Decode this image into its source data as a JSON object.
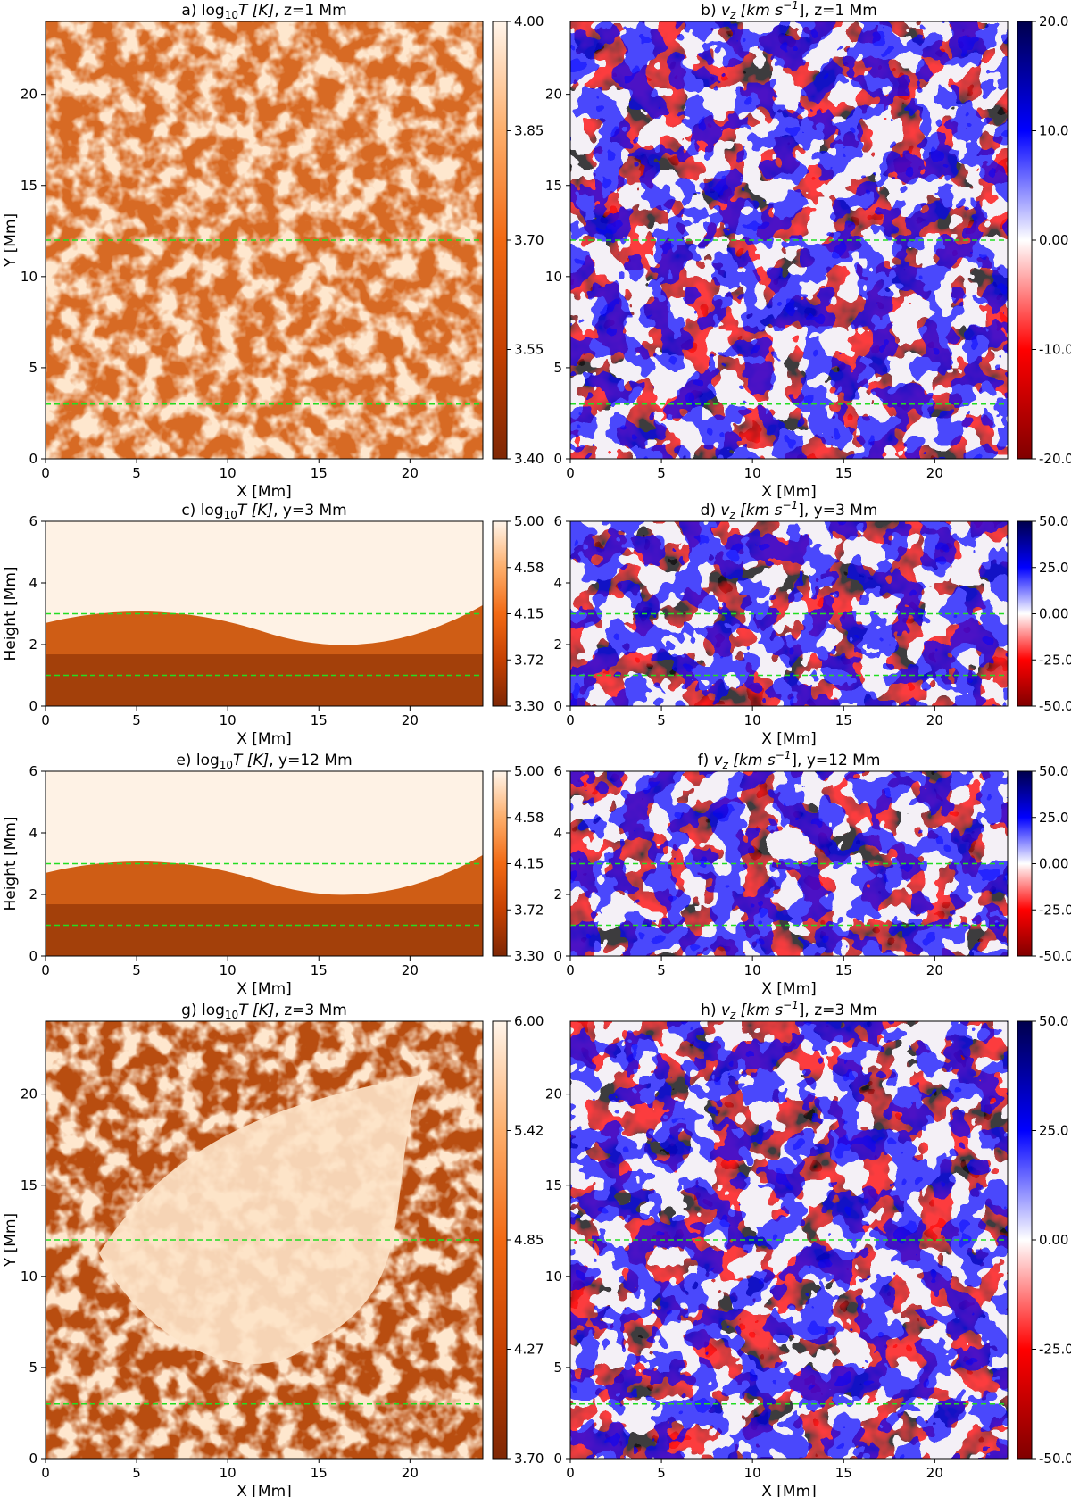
{
  "chart_data": [
    {
      "type": "heatmap",
      "panel": "a",
      "title_prefix": "a) ",
      "title_main": "log",
      "title_sub": "10",
      "title_var": "T [K]",
      "title_suffix": ", z=1 Mm",
      "xlabel": "X [Mm]",
      "ylabel": "Y [Mm]",
      "xlim": [
        0,
        24
      ],
      "ylim": [
        0,
        24
      ],
      "xticks": [
        "0",
        "5",
        "10",
        "15",
        "20"
      ],
      "yticks": [
        "0",
        "5",
        "10",
        "15",
        "20"
      ],
      "colormap": "oranges",
      "colorbar_range": [
        3.4,
        4.0
      ],
      "colorbar_ticks": [
        "3.40",
        "3.55",
        "3.70",
        "3.85",
        "4.00"
      ],
      "guide_lines_y": [
        3,
        12
      ],
      "guide_line_color": "#22dd22"
    },
    {
      "type": "heatmap",
      "panel": "b",
      "title_prefix": "b) ",
      "title_var": "v",
      "title_sub": "z",
      "title_units": " [km s",
      "title_sup": "−1",
      "title_suffix": "], z=1 Mm",
      "xlabel": "X [Mm]",
      "ylabel": "",
      "xlim": [
        0,
        24
      ],
      "ylim": [
        0,
        24
      ],
      "xticks": [
        "0",
        "5",
        "10",
        "15",
        "20"
      ],
      "yticks": [
        "0",
        "5",
        "10",
        "15",
        "20"
      ],
      "colormap": "seismic_r",
      "colorbar_range": [
        -20.0,
        20.0
      ],
      "colorbar_ticks": [
        "-20.0",
        "-10.0",
        "0.00",
        "10.0",
        "20.0"
      ],
      "guide_lines_y": [
        3,
        12
      ],
      "guide_line_color": "#22dd22"
    },
    {
      "type": "heatmap",
      "panel": "c",
      "title_prefix": "c) ",
      "title_main": "log",
      "title_sub": "10",
      "title_var": "T [K]",
      "title_suffix": ", y=3 Mm",
      "xlabel": "X [Mm]",
      "ylabel": "Height [Mm]",
      "xlim": [
        0,
        24
      ],
      "ylim": [
        0,
        6
      ],
      "xticks": [
        "0",
        "5",
        "10",
        "15",
        "20"
      ],
      "yticks": [
        "0",
        "2",
        "4",
        "6"
      ],
      "colormap": "oranges",
      "colorbar_range": [
        3.3,
        5.0
      ],
      "colorbar_ticks": [
        "3.30",
        "3.72",
        "4.15",
        "4.58",
        "5.00"
      ],
      "guide_lines_y": [
        1,
        3
      ],
      "guide_line_color": "#22dd22"
    },
    {
      "type": "heatmap",
      "panel": "d",
      "title_prefix": "d) ",
      "title_var": "v",
      "title_sub": "z",
      "title_units": " [km s",
      "title_sup": "−1",
      "title_suffix": "], y=3 Mm",
      "xlabel": "X [Mm]",
      "ylabel": "",
      "xlim": [
        0,
        24
      ],
      "ylim": [
        0,
        6
      ],
      "xticks": [
        "0",
        "5",
        "10",
        "15",
        "20"
      ],
      "yticks": [
        "0",
        "2",
        "4",
        "6"
      ],
      "colormap": "seismic_r",
      "colorbar_range": [
        -50.0,
        50.0
      ],
      "colorbar_ticks": [
        "-50.0",
        "-25.0",
        "0.00",
        "25.0",
        "50.0"
      ],
      "guide_lines_y": [
        1,
        3
      ],
      "guide_line_color": "#22dd22"
    },
    {
      "type": "heatmap",
      "panel": "e",
      "title_prefix": "e) ",
      "title_main": "log",
      "title_sub": "10",
      "title_var": "T [K]",
      "title_suffix": ", y=12 Mm",
      "xlabel": "X [Mm]",
      "ylabel": "Height [Mm]",
      "xlim": [
        0,
        24
      ],
      "ylim": [
        0,
        6
      ],
      "xticks": [
        "0",
        "5",
        "10",
        "15",
        "20"
      ],
      "yticks": [
        "0",
        "2",
        "4",
        "6"
      ],
      "colormap": "oranges",
      "colorbar_range": [
        3.3,
        5.0
      ],
      "colorbar_ticks": [
        "3.30",
        "3.72",
        "4.15",
        "4.58",
        "5.00"
      ],
      "guide_lines_y": [
        1,
        3
      ],
      "guide_line_color": "#22dd22"
    },
    {
      "type": "heatmap",
      "panel": "f",
      "title_prefix": "f) ",
      "title_var": "v",
      "title_sub": "z",
      "title_units": " [km s",
      "title_sup": "−1",
      "title_suffix": "], y=12 Mm",
      "xlabel": "X [Mm]",
      "ylabel": "",
      "xlim": [
        0,
        24
      ],
      "ylim": [
        0,
        6
      ],
      "xticks": [
        "0",
        "5",
        "10",
        "15",
        "20"
      ],
      "yticks": [
        "0",
        "2",
        "4",
        "6"
      ],
      "colormap": "seismic_r",
      "colorbar_range": [
        -50.0,
        50.0
      ],
      "colorbar_ticks": [
        "-50.0",
        "-25.0",
        "0.00",
        "25.0",
        "50.0"
      ],
      "guide_lines_y": [
        1,
        3
      ],
      "guide_line_color": "#22dd22"
    },
    {
      "type": "heatmap",
      "panel": "g",
      "title_prefix": "g) ",
      "title_main": "log",
      "title_sub": "10",
      "title_var": "T [K]",
      "title_suffix": ", z=3 Mm",
      "xlabel": "X [Mm]",
      "ylabel": "Y [Mm]",
      "xlim": [
        0,
        24
      ],
      "ylim": [
        0,
        24
      ],
      "xticks": [
        "0",
        "5",
        "10",
        "15",
        "20"
      ],
      "yticks": [
        "0",
        "5",
        "10",
        "15",
        "20"
      ],
      "colormap": "oranges",
      "colorbar_range": [
        3.7,
        6.0
      ],
      "colorbar_ticks": [
        "3.70",
        "4.27",
        "4.85",
        "5.42",
        "6.00"
      ],
      "guide_lines_y": [
        3,
        12
      ],
      "guide_line_color": "#22dd22"
    },
    {
      "type": "heatmap",
      "panel": "h",
      "title_prefix": "h) ",
      "title_var": "v",
      "title_sub": "z",
      "title_units": " [km s",
      "title_sup": "−1",
      "title_suffix": "], z=3 Mm",
      "xlabel": "X [Mm]",
      "ylabel": "",
      "xlim": [
        0,
        24
      ],
      "ylim": [
        0,
        24
      ],
      "xticks": [
        "0",
        "5",
        "10",
        "15",
        "20"
      ],
      "yticks": [
        "0",
        "5",
        "10",
        "15",
        "20"
      ],
      "colormap": "seismic_r",
      "colorbar_range": [
        -50.0,
        50.0
      ],
      "colorbar_ticks": [
        "-50.0",
        "-25.0",
        "0.00",
        "25.0",
        "50.0"
      ],
      "guide_lines_y": [
        3,
        12
      ],
      "guide_line_color": "#22dd22"
    }
  ]
}
